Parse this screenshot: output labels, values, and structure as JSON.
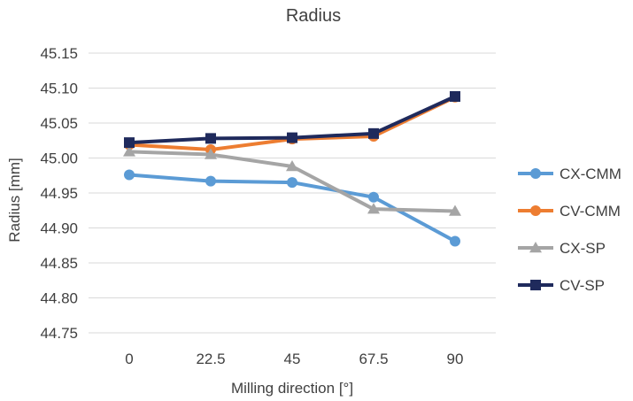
{
  "chart_data": {
    "type": "line",
    "title": "Radius",
    "xlabel": "Milling direction [°]",
    "ylabel": "Radius [mm]",
    "categories": [
      "0",
      "22.5",
      "45",
      "67.5",
      "90"
    ],
    "ylim": [
      44.75,
      45.15
    ],
    "yticks": [
      "44.75",
      "44.80",
      "44.85",
      "44.90",
      "44.95",
      "45.00",
      "45.05",
      "45.10",
      "45.15"
    ],
    "grid": "horizontal",
    "legend_position": "right",
    "series": [
      {
        "name": "CX-CMM",
        "color": "#5B9BD5",
        "marker": "circle",
        "values": [
          44.976,
          44.967,
          44.965,
          44.944,
          44.881
        ]
      },
      {
        "name": "CV-CMM",
        "color": "#ED7D31",
        "marker": "circle",
        "values": [
          45.019,
          45.012,
          45.027,
          45.031,
          45.087
        ]
      },
      {
        "name": "CX-SP",
        "color": "#A5A5A5",
        "marker": "triangle",
        "values": [
          45.009,
          45.005,
          44.988,
          44.927,
          44.924
        ]
      },
      {
        "name": "CV-SP",
        "color": "#1F2A5C",
        "marker": "square",
        "values": [
          45.022,
          45.028,
          45.029,
          45.035,
          45.088
        ]
      }
    ]
  }
}
